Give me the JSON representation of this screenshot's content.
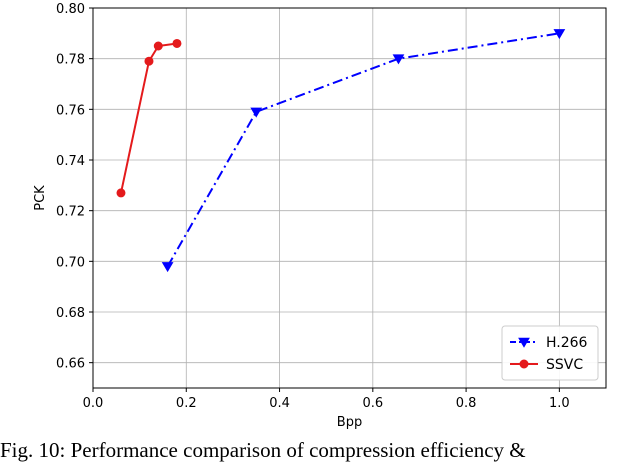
{
  "chart_data": {
    "type": "line",
    "xlabel": "Bpp",
    "ylabel": "PCK",
    "xlim": [
      0.0,
      1.1
    ],
    "ylim": [
      0.65,
      0.8
    ],
    "xticks": [
      0.0,
      0.2,
      0.4,
      0.6,
      0.8,
      1.0
    ],
    "yticks": [
      0.66,
      0.68,
      0.7,
      0.72,
      0.74,
      0.76,
      0.78,
      0.8
    ],
    "xtick_labels": [
      "0.0",
      "0.2",
      "0.4",
      "0.6",
      "0.8",
      "1.0"
    ],
    "ytick_labels": [
      "0.66",
      "0.68",
      "0.70",
      "0.72",
      "0.74",
      "0.76",
      "0.78",
      "0.80"
    ],
    "grid": true,
    "legend_position": "bottom-right",
    "series": [
      {
        "name": "H.266",
        "color": "#0000ff",
        "line_style": "dash-dot",
        "marker": "triangle-down",
        "x": [
          0.16,
          0.35,
          0.655,
          1.0
        ],
        "y": [
          0.698,
          0.759,
          0.78,
          0.79
        ]
      },
      {
        "name": "SSVC",
        "color": "#e41a1c",
        "line_style": "solid",
        "marker": "circle",
        "x": [
          0.06,
          0.12,
          0.14,
          0.18
        ],
        "y": [
          0.727,
          0.779,
          0.785,
          0.786
        ]
      }
    ]
  },
  "caption": "Fig. 10: Performance comparison of compression efficiency &"
}
